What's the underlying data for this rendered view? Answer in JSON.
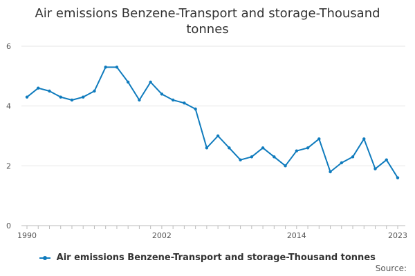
{
  "chart_data": {
    "type": "line",
    "title": "Air emissions Benzene-Transport and storage-Thousand tonnes",
    "title_lines": [
      "Air emissions Benzene-Transport and storage-Thousand",
      "tonnes"
    ],
    "xlabel": "",
    "ylabel": "",
    "x": [
      1990,
      1991,
      1992,
      1993,
      1994,
      1995,
      1996,
      1997,
      1998,
      1999,
      2000,
      2001,
      2002,
      2003,
      2004,
      2005,
      2006,
      2007,
      2008,
      2009,
      2010,
      2011,
      2012,
      2013,
      2014,
      2015,
      2016,
      2017,
      2018,
      2019,
      2020,
      2021,
      2022,
      2023
    ],
    "series": [
      {
        "name": "Air emissions Benzene-Transport and storage-Thousand tonnes",
        "values": [
          4.3,
          4.6,
          4.5,
          4.3,
          4.2,
          4.3,
          4.5,
          5.3,
          5.3,
          4.8,
          4.2,
          4.8,
          4.4,
          4.2,
          4.1,
          3.9,
          2.6,
          3.0,
          2.6,
          2.2,
          2.3,
          2.6,
          2.3,
          2.0,
          2.5,
          2.6,
          2.9,
          1.8,
          2.1,
          2.3,
          2.9,
          1.9,
          2.2,
          1.6
        ],
        "color": "#0f7bbd"
      }
    ],
    "xlim": [
      1990,
      2023
    ],
    "ylim": [
      0,
      6
    ],
    "y_ticks": [
      0,
      2,
      4,
      6
    ],
    "x_tick_labels": [
      1990,
      2002,
      2014,
      2023
    ],
    "grid": true,
    "legend_position": "bottom"
  },
  "source_label": "Source:"
}
